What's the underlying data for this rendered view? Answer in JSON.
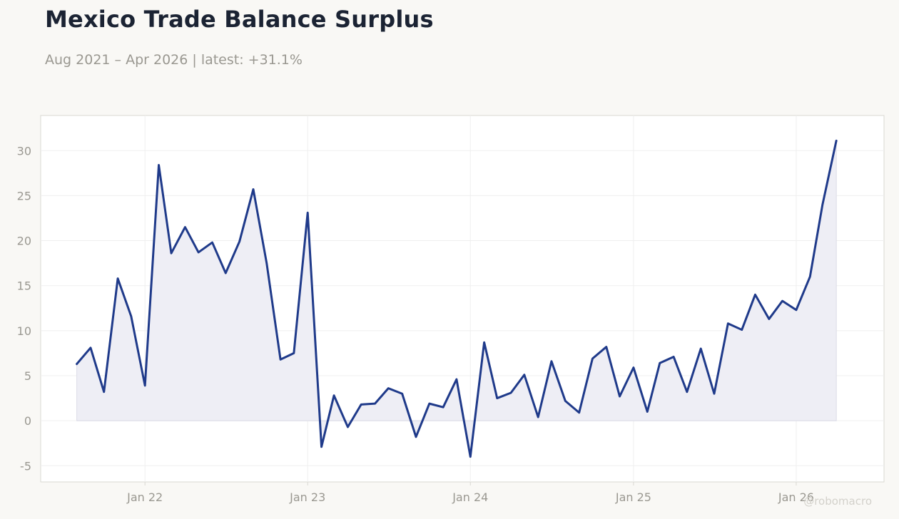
{
  "title": "Mexico Trade Balance Surplus",
  "subtitle": "Aug 2021 – Apr 2026 | latest: +31.1%",
  "watermark": "@robomacro",
  "colors": {
    "line": "#1f3a8a",
    "fill": "#eeeef5",
    "axis_text": "#9a9891",
    "grid": "#efefef",
    "frame": "#d9d8d2",
    "background": "#f9f8f5",
    "plot_background": "#ffffff"
  },
  "chart_data": {
    "type": "area",
    "title": "Mexico Trade Balance Surplus",
    "xlabel": "",
    "ylabel": "",
    "ylim": [
      -6.8,
      33.9
    ],
    "xlim": [
      "2021-05-12",
      "2026-07-17"
    ],
    "grid": true,
    "legend": "none",
    "yticks": [
      -5,
      0,
      5,
      10,
      15,
      20,
      25,
      30
    ],
    "xticks": [
      {
        "date": "2022-01-01",
        "label": "Jan 22"
      },
      {
        "date": "2023-01-01",
        "label": "Jan 23"
      },
      {
        "date": "2024-01-01",
        "label": "Jan 24"
      },
      {
        "date": "2025-01-01",
        "label": "Jan 25"
      },
      {
        "date": "2026-01-01",
        "label": "Jan 26"
      }
    ],
    "x": [
      "2021-08-01",
      "2021-09-01",
      "2021-10-01",
      "2021-11-01",
      "2021-12-01",
      "2022-01-01",
      "2022-02-01",
      "2022-03-01",
      "2022-04-01",
      "2022-05-01",
      "2022-06-01",
      "2022-07-01",
      "2022-08-01",
      "2022-09-01",
      "2022-10-01",
      "2022-11-01",
      "2022-12-01",
      "2023-01-01",
      "2023-02-01",
      "2023-03-01",
      "2023-04-01",
      "2023-05-01",
      "2023-06-01",
      "2023-07-01",
      "2023-08-01",
      "2023-09-01",
      "2023-10-01",
      "2023-11-01",
      "2023-12-01",
      "2024-01-01",
      "2024-02-01",
      "2024-03-01",
      "2024-04-01",
      "2024-05-01",
      "2024-06-01",
      "2024-07-01",
      "2024-08-01",
      "2024-09-01",
      "2024-10-01",
      "2024-11-01",
      "2024-12-01",
      "2025-01-01",
      "2025-02-01",
      "2025-03-01",
      "2025-04-01",
      "2025-05-01",
      "2025-06-01",
      "2025-07-01",
      "2025-08-01",
      "2025-09-01",
      "2025-10-01",
      "2025-11-01",
      "2025-12-01",
      "2026-01-01",
      "2026-02-01",
      "2026-03-01",
      "2026-04-01"
    ],
    "values": [
      6.3,
      8.1,
      3.2,
      15.8,
      11.6,
      3.9,
      28.4,
      18.6,
      21.5,
      18.7,
      19.8,
      16.4,
      19.9,
      25.7,
      17.5,
      6.8,
      7.5,
      23.1,
      -2.9,
      2.8,
      -0.7,
      1.8,
      1.9,
      3.6,
      3.0,
      -1.8,
      1.9,
      1.5,
      4.6,
      -4.0,
      8.7,
      2.5,
      3.1,
      5.1,
      0.4,
      6.6,
      2.2,
      0.9,
      6.9,
      8.2,
      2.7,
      5.9,
      1.0,
      6.4,
      7.1,
      3.2,
      8.0,
      3.0,
      10.8,
      10.1,
      14.0,
      11.3,
      13.3,
      12.3,
      16.0,
      24.0,
      31.1
    ],
    "baseline": 0
  }
}
